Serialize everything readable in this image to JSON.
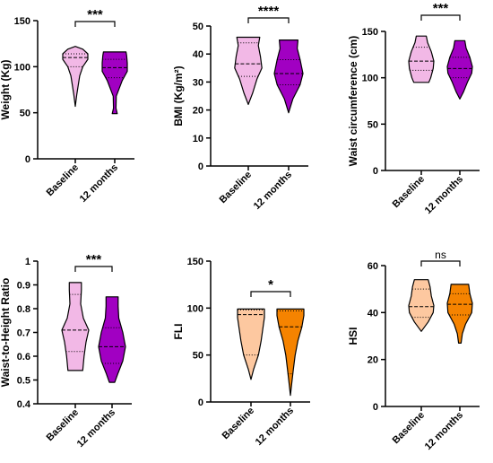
{
  "colors": {
    "pink_light": "#F2B8E6",
    "purple": "#A100C2",
    "peach": "#FDC8A0",
    "orange": "#F58300",
    "outline": "#000000"
  },
  "chart_data": [
    {
      "type": "violin",
      "ylabel": "Weight (Kg)",
      "ylim": [
        0,
        150
      ],
      "yticks": [
        0,
        50,
        100,
        150
      ],
      "categories": [
        "Baseline",
        "12 months"
      ],
      "significance": "***",
      "series": [
        {
          "min": 57,
          "max": 122,
          "median": 110,
          "q1": 100,
          "q3": 114,
          "profile": [
            [
              57,
              0.0
            ],
            [
              70,
              0.12
            ],
            [
              90,
              0.35
            ],
            [
              100,
              0.6
            ],
            [
              108,
              1.0
            ],
            [
              114,
              1.0
            ],
            [
              119,
              0.6
            ],
            [
              122,
              0.0
            ]
          ]
        },
        {
          "min": 49,
          "max": 116,
          "median": 99,
          "q1": 88,
          "q3": 108,
          "profile": [
            [
              49,
              0.2
            ],
            [
              55,
              0.1
            ],
            [
              68,
              0.12
            ],
            [
              85,
              0.6
            ],
            [
              95,
              1.0
            ],
            [
              104,
              1.0
            ],
            [
              112,
              0.95
            ],
            [
              116,
              0.9
            ]
          ]
        }
      ]
    },
    {
      "type": "violin",
      "ylabel": "BMI (Kg/m²)",
      "ylim": [
        0,
        50
      ],
      "yticks": [
        0,
        10,
        20,
        30,
        40,
        50
      ],
      "categories": [
        "Baseline",
        "12 months"
      ],
      "significance": "****",
      "series": [
        {
          "min": 22,
          "max": 46,
          "median": 36.5,
          "q1": 32,
          "q3": 44,
          "profile": [
            [
              22,
              0.0
            ],
            [
              26,
              0.3
            ],
            [
              31,
              0.6
            ],
            [
              35,
              0.95
            ],
            [
              39,
              0.85
            ],
            [
              43,
              0.7
            ],
            [
              46,
              0.8
            ]
          ]
        },
        {
          "min": 19,
          "max": 45,
          "median": 33,
          "q1": 29,
          "q3": 38,
          "profile": [
            [
              19,
              0.0
            ],
            [
              24,
              0.3
            ],
            [
              29,
              0.8
            ],
            [
              33,
              1.0
            ],
            [
              38,
              0.8
            ],
            [
              42,
              0.6
            ],
            [
              45,
              0.65
            ]
          ]
        }
      ]
    },
    {
      "type": "violin",
      "ylabel": "Waist circumference (cm)",
      "ylim": [
        0,
        150
      ],
      "yticks": [
        0,
        50,
        100,
        150
      ],
      "categories": [
        "Baseline",
        "12 months"
      ],
      "significance": "***",
      "series": [
        {
          "min": 95,
          "max": 145,
          "median": 118,
          "q1": 108,
          "q3": 133,
          "profile": [
            [
              95,
              0.6
            ],
            [
              100,
              0.75
            ],
            [
              110,
              0.95
            ],
            [
              118,
              1.0
            ],
            [
              128,
              0.8
            ],
            [
              138,
              0.5
            ],
            [
              145,
              0.4
            ]
          ]
        },
        {
          "min": 77,
          "max": 140,
          "median": 110,
          "q1": 100,
          "q3": 122,
          "profile": [
            [
              77,
              0.0
            ],
            [
              85,
              0.3
            ],
            [
              95,
              0.6
            ],
            [
              105,
              0.95
            ],
            [
              112,
              1.0
            ],
            [
              122,
              0.8
            ],
            [
              132,
              0.5
            ],
            [
              140,
              0.4
            ]
          ]
        }
      ]
    },
    {
      "type": "violin",
      "ylabel": "Waist-to-Height Ratio",
      "ylim": [
        0.4,
        1.0
      ],
      "yticks": [
        0.4,
        0.5,
        0.6,
        0.7,
        0.8,
        0.9,
        1.0
      ],
      "categories": [
        "Baseline",
        "12 months"
      ],
      "significance": "***",
      "series": [
        {
          "min": 0.54,
          "max": 0.91,
          "median": 0.71,
          "q1": 0.62,
          "q3": 0.86,
          "profile": [
            [
              0.54,
              0.55
            ],
            [
              0.6,
              0.65
            ],
            [
              0.66,
              0.8
            ],
            [
              0.71,
              1.0
            ],
            [
              0.76,
              0.6
            ],
            [
              0.82,
              0.4
            ],
            [
              0.88,
              0.45
            ],
            [
              0.91,
              0.45
            ]
          ]
        },
        {
          "min": 0.49,
          "max": 0.85,
          "median": 0.64,
          "q1": 0.57,
          "q3": 0.72,
          "profile": [
            [
              0.49,
              0.2
            ],
            [
              0.53,
              0.45
            ],
            [
              0.58,
              0.8
            ],
            [
              0.64,
              1.0
            ],
            [
              0.7,
              0.8
            ],
            [
              0.76,
              0.5
            ],
            [
              0.81,
              0.45
            ],
            [
              0.85,
              0.45
            ]
          ]
        }
      ]
    },
    {
      "type": "violin",
      "ylabel": "FLI",
      "ylim": [
        0,
        150
      ],
      "yticks": [
        0,
        50,
        100,
        150
      ],
      "categories": [
        "Baseline",
        "12 months"
      ],
      "significance": "*",
      "series": [
        {
          "min": 24,
          "max": 99,
          "median": 93,
          "q1": 50,
          "q3": 98,
          "profile": [
            [
              24,
              0.0
            ],
            [
              35,
              0.2
            ],
            [
              50,
              0.55
            ],
            [
              65,
              0.75
            ],
            [
              80,
              0.9
            ],
            [
              90,
              1.0
            ],
            [
              99,
              1.0
            ]
          ]
        },
        {
          "min": 7,
          "max": 99,
          "median": 80,
          "q1": 30,
          "q3": 97,
          "profile": [
            [
              7,
              0.0
            ],
            [
              20,
              0.1
            ],
            [
              35,
              0.22
            ],
            [
              50,
              0.35
            ],
            [
              65,
              0.55
            ],
            [
              80,
              0.85
            ],
            [
              92,
              1.0
            ],
            [
              99,
              1.0
            ]
          ]
        }
      ]
    },
    {
      "type": "violin",
      "ylabel": "HSI",
      "ylim": [
        0,
        60
      ],
      "yticks": [
        0,
        20,
        40,
        60
      ],
      "categories": [
        "Baseline",
        "12 months"
      ],
      "significance": "ns",
      "series": [
        {
          "min": 32,
          "max": 54,
          "median": 42.5,
          "q1": 38,
          "q3": 50,
          "profile": [
            [
              32,
              0.0
            ],
            [
              36,
              0.55
            ],
            [
              40,
              0.95
            ],
            [
              43,
              1.0
            ],
            [
              47,
              0.8
            ],
            [
              51,
              0.7
            ],
            [
              54,
              0.55
            ]
          ]
        },
        {
          "min": 27,
          "max": 52,
          "median": 43.5,
          "q1": 39,
          "q3": 48,
          "profile": [
            [
              27,
              0.1
            ],
            [
              31,
              0.2
            ],
            [
              35,
              0.45
            ],
            [
              40,
              0.95
            ],
            [
              44,
              1.0
            ],
            [
              48,
              0.8
            ],
            [
              52,
              0.7
            ]
          ]
        }
      ]
    }
  ]
}
